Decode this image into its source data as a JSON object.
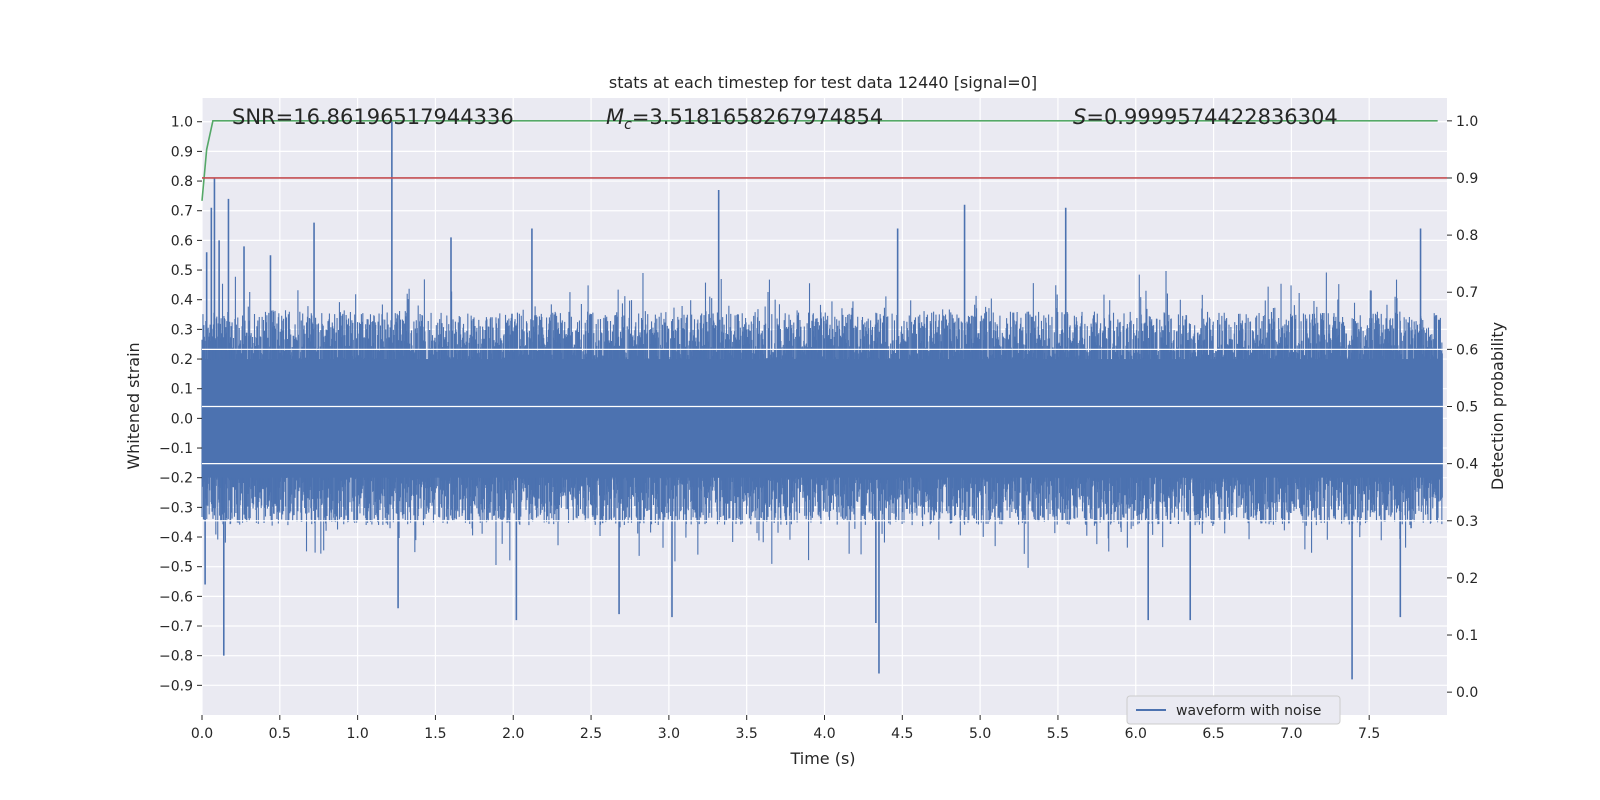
{
  "chart_data": {
    "type": "line",
    "title": "stats at each timestep for test data 12440 [signal=0]",
    "xlabel": "Time (s)",
    "ylabel": "Whitened strain",
    "y2label": "Detection probability",
    "xlim": [
      0.0,
      8.0
    ],
    "ylim": [
      -1.0,
      1.08
    ],
    "y2lim": [
      -0.04,
      1.04
    ],
    "xticks": [
      "0.0",
      "0.5",
      "1.0",
      "1.5",
      "2.0",
      "2.5",
      "3.0",
      "3.5",
      "4.0",
      "4.5",
      "5.0",
      "5.5",
      "6.0",
      "6.5",
      "7.0",
      "7.5"
    ],
    "yticks": [
      "1.0",
      "0.9",
      "0.8",
      "0.7",
      "0.6",
      "0.5",
      "0.4",
      "0.3",
      "0.2",
      "0.1",
      "0.0",
      "−0.1",
      "−0.2",
      "−0.3",
      "−0.4",
      "−0.5",
      "−0.6",
      "−0.7",
      "−0.8",
      "−0.9"
    ],
    "y2ticks": [
      "1.0",
      "0.9",
      "0.8",
      "0.7",
      "0.6",
      "0.5",
      "0.4",
      "0.3",
      "0.2",
      "0.1",
      "0.0"
    ],
    "grid": true,
    "legend_placement": "lower-right",
    "annotations": {
      "snr": "SNR=16.86196517944336",
      "mc_symbol": "M",
      "mc_sub": "c",
      "mc_value": "=3.5181658267974854",
      "s_symbol": "S",
      "s_value": "=0.9999574422836304"
    },
    "series": [
      {
        "name": "waveform with noise",
        "axis": "left",
        "color": "#4c72b0",
        "envelope_typical": 0.36,
        "band_core": 0.2,
        "spikes": [
          {
            "x": 0.03,
            "y": 0.56
          },
          {
            "x": 0.06,
            "y": 0.71
          },
          {
            "x": 0.08,
            "y": 0.81
          },
          {
            "x": 0.11,
            "y": 0.6
          },
          {
            "x": 0.17,
            "y": 0.74
          },
          {
            "x": 0.27,
            "y": 0.58
          },
          {
            "x": 0.44,
            "y": 0.55
          },
          {
            "x": 0.72,
            "y": 0.66
          },
          {
            "x": 1.22,
            "y": 1.0
          },
          {
            "x": 1.6,
            "y": 0.61
          },
          {
            "x": 2.12,
            "y": 0.64
          },
          {
            "x": 3.32,
            "y": 0.77
          },
          {
            "x": 4.47,
            "y": 0.64
          },
          {
            "x": 4.9,
            "y": 0.72
          },
          {
            "x": 5.55,
            "y": 0.71
          },
          {
            "x": 7.83,
            "y": 0.64
          },
          {
            "x": 0.14,
            "y": -0.8
          },
          {
            "x": 0.02,
            "y": -0.56
          },
          {
            "x": 1.26,
            "y": -0.64
          },
          {
            "x": 2.02,
            "y": -0.68
          },
          {
            "x": 2.68,
            "y": -0.66
          },
          {
            "x": 3.02,
            "y": -0.67
          },
          {
            "x": 4.35,
            "y": -0.86
          },
          {
            "x": 4.33,
            "y": -0.69
          },
          {
            "x": 6.08,
            "y": -0.68
          },
          {
            "x": 6.35,
            "y": -0.68
          },
          {
            "x": 7.39,
            "y": -0.88
          },
          {
            "x": 7.7,
            "y": -0.67
          }
        ]
      },
      {
        "name": "",
        "axis": "right",
        "color": "#55a868",
        "points": [
          [
            0.0,
            0.86
          ],
          [
            0.03,
            0.95
          ],
          [
            0.07,
            1.0
          ],
          [
            7.94,
            1.0
          ]
        ]
      },
      {
        "name": "",
        "axis": "right",
        "color": "#c44e52",
        "points": [
          [
            0.0,
            0.9
          ],
          [
            8.0,
            0.9
          ]
        ]
      }
    ],
    "colors": {
      "background": "#eaeaf2",
      "grid": "#ffffff",
      "text": "#262626"
    }
  }
}
